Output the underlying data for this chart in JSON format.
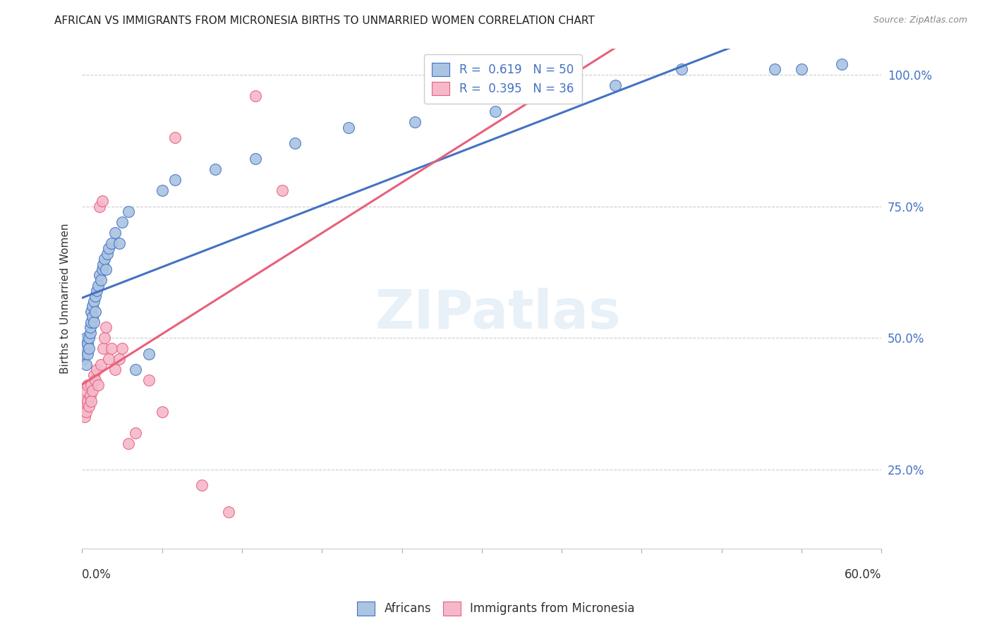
{
  "title": "AFRICAN VS IMMIGRANTS FROM MICRONESIA BIRTHS TO UNMARRIED WOMEN CORRELATION CHART",
  "source": "Source: ZipAtlas.com",
  "ylabel": "Births to Unmarried Women",
  "watermark": "ZIPatlas",
  "legend_blue": "R =  0.619   N = 50",
  "legend_pink": "R =  0.395   N = 36",
  "legend_label_blue": "Africans",
  "legend_label_pink": "Immigrants from Micronesia",
  "blue_color": "#aac4e2",
  "pink_color": "#f5b8cb",
  "line_blue": "#4472c4",
  "line_pink": "#e8607a",
  "text_color": "#4472c4",
  "xmin": 0.0,
  "xmax": 0.6,
  "ymin": 0.1,
  "ymax": 1.05,
  "africans_x": [
    0.001,
    0.002,
    0.002,
    0.003,
    0.003,
    0.004,
    0.004,
    0.005,
    0.005,
    0.006,
    0.006,
    0.007,
    0.007,
    0.008,
    0.008,
    0.009,
    0.009,
    0.01,
    0.01,
    0.011,
    0.012,
    0.013,
    0.014,
    0.015,
    0.016,
    0.017,
    0.018,
    0.019,
    0.02,
    0.022,
    0.025,
    0.028,
    0.03,
    0.035,
    0.04,
    0.05,
    0.06,
    0.07,
    0.1,
    0.13,
    0.16,
    0.2,
    0.25,
    0.31,
    0.36,
    0.4,
    0.45,
    0.52,
    0.54,
    0.57
  ],
  "africans_y": [
    0.46,
    0.47,
    0.48,
    0.45,
    0.5,
    0.47,
    0.49,
    0.48,
    0.5,
    0.51,
    0.52,
    0.53,
    0.55,
    0.54,
    0.56,
    0.53,
    0.57,
    0.58,
    0.55,
    0.59,
    0.6,
    0.62,
    0.61,
    0.63,
    0.64,
    0.65,
    0.63,
    0.66,
    0.67,
    0.68,
    0.7,
    0.68,
    0.72,
    0.74,
    0.44,
    0.47,
    0.78,
    0.8,
    0.82,
    0.84,
    0.87,
    0.9,
    0.91,
    0.93,
    0.96,
    0.98,
    1.01,
    1.01,
    1.01,
    1.02
  ],
  "micronesia_x": [
    0.001,
    0.002,
    0.002,
    0.003,
    0.003,
    0.004,
    0.004,
    0.005,
    0.006,
    0.007,
    0.007,
    0.008,
    0.009,
    0.01,
    0.011,
    0.012,
    0.013,
    0.014,
    0.015,
    0.016,
    0.017,
    0.018,
    0.02,
    0.022,
    0.025,
    0.028,
    0.03,
    0.035,
    0.04,
    0.05,
    0.06,
    0.07,
    0.09,
    0.11,
    0.13,
    0.15
  ],
  "micronesia_y": [
    0.37,
    0.35,
    0.38,
    0.36,
    0.4,
    0.38,
    0.41,
    0.37,
    0.39,
    0.38,
    0.41,
    0.4,
    0.43,
    0.42,
    0.44,
    0.41,
    0.75,
    0.45,
    0.76,
    0.48,
    0.5,
    0.52,
    0.46,
    0.48,
    0.44,
    0.46,
    0.48,
    0.3,
    0.32,
    0.42,
    0.36,
    0.88,
    0.22,
    0.17,
    0.96,
    0.78
  ]
}
